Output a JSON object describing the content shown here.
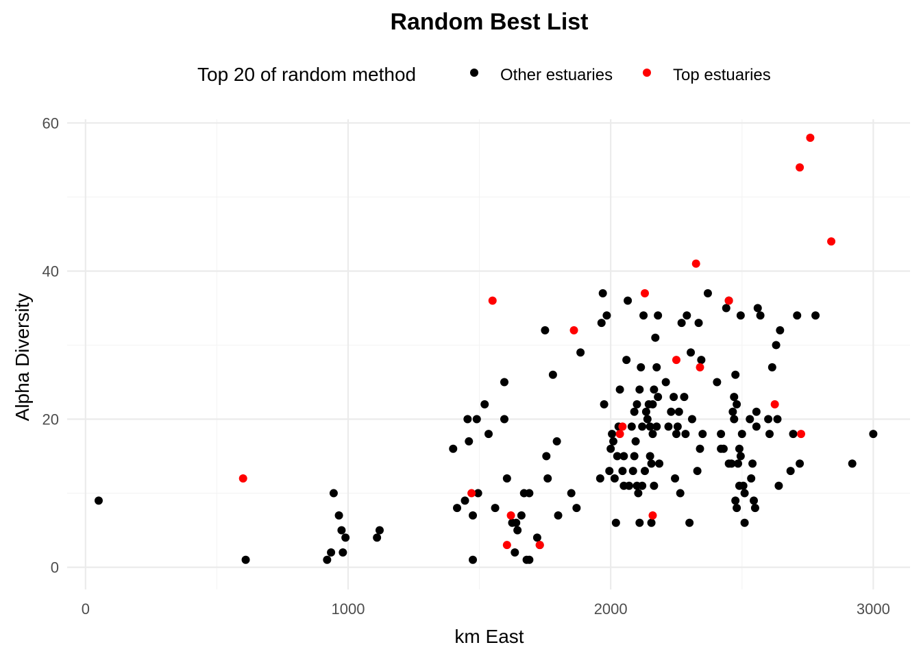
{
  "chart_data": {
    "type": "scatter",
    "title": "Random Best List",
    "xlabel": "km East",
    "ylabel": "Alpha Diversity",
    "xlim": [
      -70,
      3140
    ],
    "ylim": [
      -3,
      60.5
    ],
    "x_ticks": [
      0,
      1000,
      2000,
      3000
    ],
    "x_tick_labels": [
      "0",
      "1000",
      "2000",
      "3000"
    ],
    "y_ticks": [
      0,
      20,
      40,
      60
    ],
    "y_tick_labels": [
      "0",
      "20",
      "40",
      "60"
    ],
    "grid": true,
    "legend": {
      "position": "top",
      "title": "Top 20 of random method",
      "entries": [
        {
          "label": "Other estuaries",
          "color": "#000000"
        },
        {
          "label": "Top estuaries",
          "color": "#ff0000"
        }
      ]
    },
    "series": [
      {
        "name": "Other estuaries",
        "color": "#000000",
        "points": [
          [
            50,
            9
          ],
          [
            610,
            1
          ],
          [
            920,
            1
          ],
          [
            935,
            2
          ],
          [
            945,
            10
          ],
          [
            965,
            7
          ],
          [
            975,
            5
          ],
          [
            980,
            2
          ],
          [
            990,
            4
          ],
          [
            1110,
            4
          ],
          [
            1120,
            5
          ],
          [
            1400,
            16
          ],
          [
            1415,
            8
          ],
          [
            1445,
            9
          ],
          [
            1455,
            20
          ],
          [
            1460,
            17
          ],
          [
            1475,
            7
          ],
          [
            1475,
            1
          ],
          [
            1490,
            20
          ],
          [
            1495,
            10
          ],
          [
            1520,
            22
          ],
          [
            1535,
            18
          ],
          [
            1560,
            8
          ],
          [
            1595,
            25
          ],
          [
            1595,
            20
          ],
          [
            1605,
            12
          ],
          [
            1625,
            6
          ],
          [
            1635,
            2
          ],
          [
            1640,
            6
          ],
          [
            1645,
            5
          ],
          [
            1660,
            7
          ],
          [
            1670,
            10
          ],
          [
            1690,
            10
          ],
          [
            1680,
            1
          ],
          [
            1690,
            1
          ],
          [
            1720,
            4
          ],
          [
            1730,
            3
          ],
          [
            1750,
            32
          ],
          [
            1755,
            15
          ],
          [
            1760,
            12
          ],
          [
            1780,
            26
          ],
          [
            1795,
            17
          ],
          [
            1800,
            7
          ],
          [
            1850,
            10
          ],
          [
            1870,
            8
          ],
          [
            1885,
            29
          ],
          [
            1960,
            12
          ],
          [
            1965,
            33
          ],
          [
            1970,
            37
          ],
          [
            1975,
            22
          ],
          [
            1985,
            34
          ],
          [
            1995,
            13
          ],
          [
            2000,
            16
          ],
          [
            2005,
            18
          ],
          [
            2010,
            17
          ],
          [
            2015,
            12
          ],
          [
            2020,
            6
          ],
          [
            2025,
            15
          ],
          [
            2030,
            19
          ],
          [
            2035,
            24
          ],
          [
            2045,
            13
          ],
          [
            2050,
            11
          ],
          [
            2050,
            15
          ],
          [
            2060,
            28
          ],
          [
            2065,
            36
          ],
          [
            2070,
            11
          ],
          [
            2080,
            19
          ],
          [
            2085,
            13
          ],
          [
            2090,
            21
          ],
          [
            2090,
            15
          ],
          [
            2095,
            17
          ],
          [
            2100,
            22
          ],
          [
            2100,
            11
          ],
          [
            2105,
            10
          ],
          [
            2110,
            24
          ],
          [
            2110,
            6
          ],
          [
            2115,
            27
          ],
          [
            2120,
            19
          ],
          [
            2120,
            11
          ],
          [
            2125,
            34
          ],
          [
            2130,
            13
          ],
          [
            2135,
            21
          ],
          [
            2140,
            20
          ],
          [
            2145,
            22
          ],
          [
            2150,
            19
          ],
          [
            2150,
            15
          ],
          [
            2155,
            14
          ],
          [
            2155,
            6
          ],
          [
            2160,
            22
          ],
          [
            2160,
            18
          ],
          [
            2165,
            24
          ],
          [
            2165,
            11
          ],
          [
            2170,
            31
          ],
          [
            2175,
            27
          ],
          [
            2175,
            19
          ],
          [
            2180,
            34
          ],
          [
            2180,
            23
          ],
          [
            2185,
            14
          ],
          [
            2210,
            25
          ],
          [
            2220,
            19
          ],
          [
            2230,
            21
          ],
          [
            2240,
            23
          ],
          [
            2245,
            12
          ],
          [
            2250,
            18
          ],
          [
            2255,
            19
          ],
          [
            2260,
            21
          ],
          [
            2265,
            10
          ],
          [
            2270,
            33
          ],
          [
            2280,
            23
          ],
          [
            2285,
            18
          ],
          [
            2290,
            34
          ],
          [
            2300,
            6
          ],
          [
            2305,
            29
          ],
          [
            2310,
            20
          ],
          [
            2330,
            13
          ],
          [
            2335,
            33
          ],
          [
            2340,
            16
          ],
          [
            2345,
            28
          ],
          [
            2350,
            18
          ],
          [
            2370,
            37
          ],
          [
            2405,
            25
          ],
          [
            2420,
            16
          ],
          [
            2420,
            18
          ],
          [
            2430,
            16
          ],
          [
            2440,
            35
          ],
          [
            2450,
            14
          ],
          [
            2450,
            36
          ],
          [
            2460,
            14
          ],
          [
            2465,
            21
          ],
          [
            2470,
            20
          ],
          [
            2470,
            23
          ],
          [
            2475,
            9
          ],
          [
            2475,
            26
          ],
          [
            2480,
            22
          ],
          [
            2480,
            8
          ],
          [
            2485,
            14
          ],
          [
            2490,
            16
          ],
          [
            2490,
            11
          ],
          [
            2495,
            34
          ],
          [
            2495,
            15
          ],
          [
            2500,
            18
          ],
          [
            2505,
            11
          ],
          [
            2510,
            6
          ],
          [
            2510,
            10
          ],
          [
            2530,
            20
          ],
          [
            2535,
            12
          ],
          [
            2540,
            14
          ],
          [
            2545,
            9
          ],
          [
            2550,
            8
          ],
          [
            2555,
            21
          ],
          [
            2555,
            19
          ],
          [
            2560,
            35
          ],
          [
            2570,
            34
          ],
          [
            2600,
            20
          ],
          [
            2605,
            18
          ],
          [
            2615,
            27
          ],
          [
            2630,
            30
          ],
          [
            2635,
            20
          ],
          [
            2640,
            11
          ],
          [
            2645,
            32
          ],
          [
            2685,
            13
          ],
          [
            2695,
            18
          ],
          [
            2710,
            34
          ],
          [
            2720,
            14
          ],
          [
            2780,
            34
          ],
          [
            2920,
            14
          ],
          [
            3000,
            18
          ]
        ]
      },
      {
        "name": "Top estuaries",
        "color": "#ff0000",
        "points": [
          [
            600,
            12
          ],
          [
            1470,
            10
          ],
          [
            1550,
            36
          ],
          [
            1605,
            3
          ],
          [
            1620,
            7
          ],
          [
            1730,
            3
          ],
          [
            1860,
            32
          ],
          [
            2035,
            18
          ],
          [
            2045,
            19
          ],
          [
            2130,
            37
          ],
          [
            2160,
            7
          ],
          [
            2250,
            28
          ],
          [
            2325,
            41
          ],
          [
            2340,
            27
          ],
          [
            2450,
            36
          ],
          [
            2625,
            22
          ],
          [
            2725,
            18
          ],
          [
            2720,
            54
          ],
          [
            2760,
            58
          ],
          [
            2840,
            44
          ]
        ]
      }
    ]
  }
}
